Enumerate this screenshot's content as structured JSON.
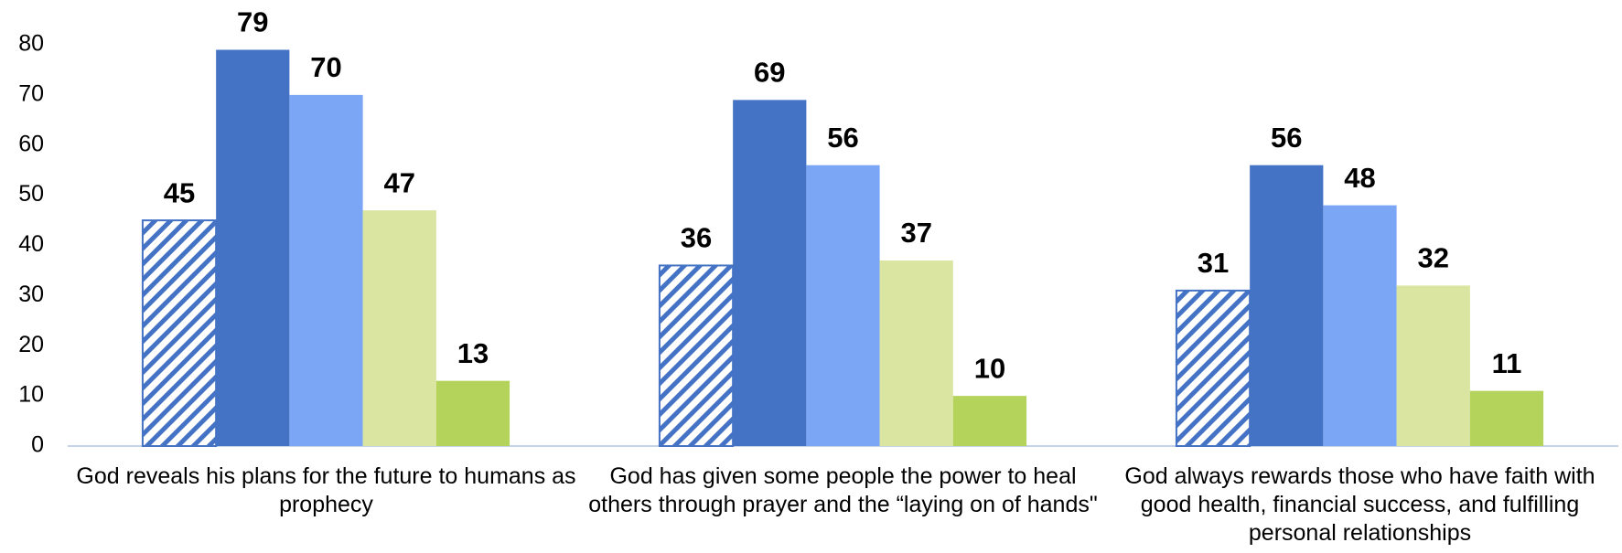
{
  "chart_data": {
    "type": "bar",
    "categories": [
      "God reveals his plans for the future to humans as prophecy",
      "God has given some people the power to heal others through prayer and the “laying on of hands\"",
      "God always rewards those who have faith with good health, financial success, and fulfilling personal relationships"
    ],
    "series": [
      {
        "color": "#4472c4",
        "pattern": "hatch",
        "values": [
          45,
          36,
          31
        ]
      },
      {
        "color": "#4472c4",
        "values": [
          79,
          69,
          56
        ]
      },
      {
        "color": "#7aa6f5",
        "values": [
          70,
          56,
          48
        ]
      },
      {
        "color": "#d9e5a0",
        "values": [
          47,
          37,
          32
        ]
      },
      {
        "color": "#b3d35a",
        "values": [
          13,
          10,
          11
        ]
      }
    ],
    "ylim": [
      0,
      80
    ],
    "yticks": [
      0,
      10,
      20,
      30,
      40,
      50,
      60,
      70,
      80
    ],
    "grid": false
  }
}
